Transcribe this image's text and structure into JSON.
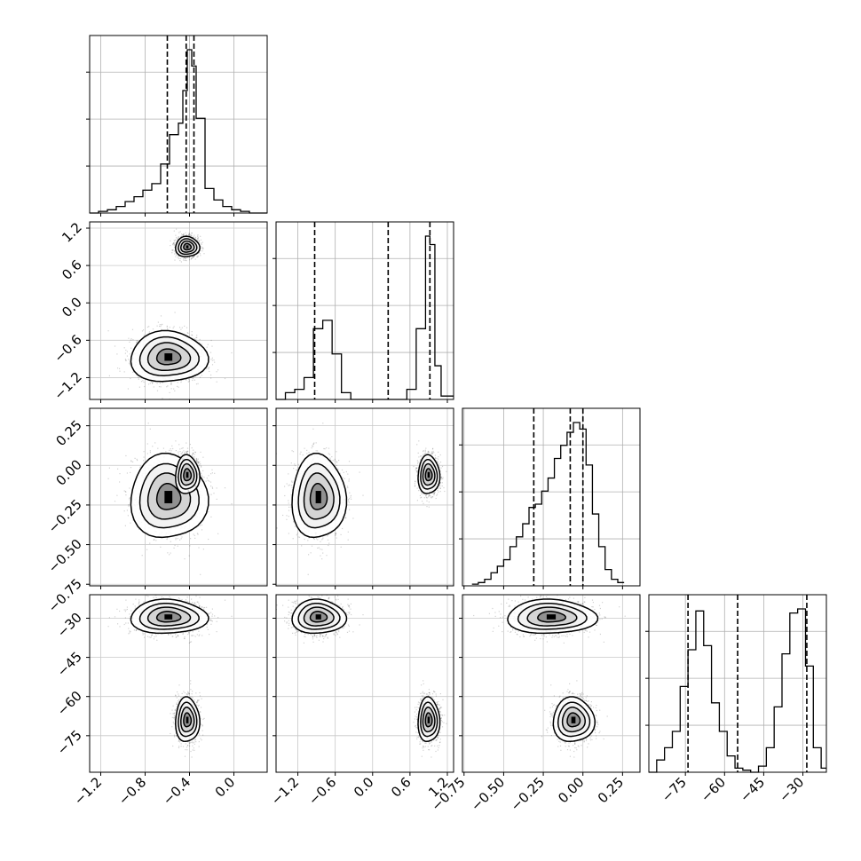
{
  "chart_data": {
    "type": "corner",
    "grid": true,
    "parameters": [
      {
        "range": [
          -1.3,
          0.3
        ],
        "tick_values": [
          -1.2,
          -0.8,
          -0.4,
          0.0
        ],
        "tick_labels": [
          "−1.2",
          "−0.8",
          "−0.4",
          "0.0"
        ],
        "quantiles": [
          -0.6,
          -0.43,
          -0.36
        ],
        "hist_edges": [
          -1.3,
          -1.22,
          -1.14,
          -1.06,
          -0.98,
          -0.9,
          -0.82,
          -0.74,
          -0.66,
          -0.58,
          -0.5,
          -0.46,
          -0.42,
          -0.38,
          -0.34,
          -0.26,
          -0.18,
          -0.1,
          -0.02,
          0.06,
          0.14,
          0.3
        ],
        "hist_counts": [
          0,
          0.01,
          0.02,
          0.04,
          0.07,
          0.1,
          0.14,
          0.18,
          0.3,
          0.48,
          0.55,
          0.75,
          1.0,
          0.9,
          0.58,
          0.15,
          0.08,
          0.04,
          0.02,
          0.01,
          0
        ]
      },
      {
        "range": [
          -1.55,
          1.3
        ],
        "tick_values": [
          -1.2,
          -0.6,
          0.0,
          0.6,
          1.2
        ],
        "tick_labels": [
          "−1.2",
          "−0.6",
          "0.0",
          "0.6",
          "1.2"
        ],
        "quantiles": [
          -0.93,
          0.25,
          0.92
        ],
        "hist_edges": [
          -1.55,
          -1.4,
          -1.25,
          -1.1,
          -0.95,
          -0.8,
          -0.65,
          -0.5,
          -0.35,
          -0.2,
          -0.05,
          0.1,
          0.25,
          0.4,
          0.55,
          0.7,
          0.85,
          0.92,
          1.0,
          1.1,
          1.3
        ],
        "hist_counts": [
          0,
          0.04,
          0.06,
          0.13,
          0.42,
          0.47,
          0.27,
          0.04,
          0,
          0,
          0,
          0,
          0,
          0,
          0.06,
          0.42,
          0.97,
          0.92,
          0.2,
          0.02
        ]
      },
      {
        "range": [
          -0.76,
          0.36
        ],
        "tick_values": [
          -0.75,
          -0.5,
          -0.25,
          0.0,
          0.25
        ],
        "tick_labels": [
          "−0.75",
          "−0.50",
          "−0.25",
          "0.00",
          "0.25"
        ],
        "quantiles": [
          -0.31,
          -0.08,
          0.0
        ],
        "hist_edges": [
          -0.7,
          -0.66,
          -0.62,
          -0.58,
          -0.54,
          -0.5,
          -0.46,
          -0.42,
          -0.38,
          -0.34,
          -0.3,
          -0.26,
          -0.22,
          -0.18,
          -0.14,
          -0.1,
          -0.06,
          -0.02,
          0.02,
          0.06,
          0.1,
          0.14,
          0.18,
          0.22,
          0.26
        ],
        "hist_counts": [
          0.01,
          0.02,
          0.04,
          0.08,
          0.12,
          0.16,
          0.24,
          0.3,
          0.38,
          0.48,
          0.5,
          0.58,
          0.66,
          0.78,
          0.86,
          0.94,
          1.0,
          0.96,
          0.74,
          0.44,
          0.24,
          0.1,
          0.04,
          0.02
        ]
      },
      {
        "range": [
          -89,
          -21
        ],
        "tick_values": [
          -75,
          -60,
          -45,
          -30
        ],
        "tick_labels": [
          "−75",
          "−60",
          "−45",
          "−30"
        ],
        "quantiles": [
          -74,
          -55,
          -28.5
        ],
        "hist_edges": [
          -89,
          -86,
          -83,
          -80,
          -77,
          -74,
          -71,
          -68,
          -65,
          -62,
          -59,
          -56,
          -53,
          -50,
          -47,
          -44,
          -41,
          -38,
          -35,
          -32,
          -29,
          -26,
          -23,
          -21
        ],
        "hist_counts": [
          0,
          0.06,
          0.12,
          0.2,
          0.42,
          0.6,
          0.79,
          0.62,
          0.34,
          0.2,
          0.08,
          0.02,
          0.01,
          0,
          0.03,
          0.12,
          0.32,
          0.58,
          0.78,
          0.8,
          0.52,
          0.12,
          0.02
        ]
      }
    ],
    "y_ticks_per_row": {
      "1": {
        "values": [
          1.2,
          0.6,
          0.0,
          -0.6,
          -1.2
        ],
        "labels": [
          "1.2",
          "0.6",
          "0.0",
          "−0.6",
          "−1.2"
        ]
      },
      "2": {
        "values": [
          0.25,
          0.0,
          -0.25,
          -0.5,
          -0.75
        ],
        "labels": [
          "0.25",
          "0.00",
          "−0.25",
          "−0.50",
          "−0.75"
        ]
      },
      "3": {
        "values": [
          -30,
          -45,
          -60,
          -75
        ],
        "labels": [
          "−30",
          "−45",
          "−60",
          "−75"
        ]
      }
    },
    "modes": [
      {
        "params": [
          -0.59,
          -0.87,
          -0.2,
          -29.5
        ],
        "spread": [
          0.16,
          0.2,
          0.13,
          3.2
        ],
        "weight": 0.5
      },
      {
        "params": [
          -0.42,
          0.9,
          -0.06,
          -69
        ],
        "spread": [
          0.05,
          0.08,
          0.06,
          4.2
        ],
        "weight": 0.5
      }
    ],
    "contour_levels": 4
  }
}
